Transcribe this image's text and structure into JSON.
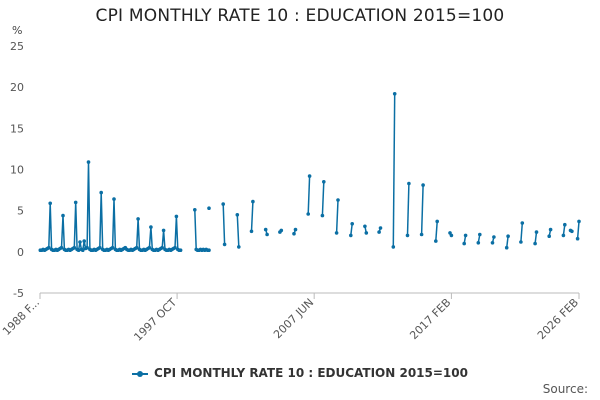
{
  "chart_data": {
    "type": "line",
    "title": "CPI MONTHLY RATE 10 : EDUCATION 2015=100",
    "ylabel": "%",
    "xlabel": "",
    "ylim": [
      -5,
      25
    ],
    "yticks": [
      -5,
      0,
      5,
      10,
      15,
      20,
      25
    ],
    "xlim": [
      1988.08,
      2026.1
    ],
    "xticks": [
      {
        "value": 1988.08,
        "label": "1988 F..."
      },
      {
        "value": 1997.75,
        "label": "1997 OCT"
      },
      {
        "value": 2007.42,
        "label": "2007 JUN"
      },
      {
        "value": 2017.1,
        "label": "2017 FEB"
      },
      {
        "value": 2026.1,
        "label": "2026 FEB"
      }
    ],
    "grid": false,
    "legend_position": "bottom",
    "series": [
      {
        "name": "CPI MONTHLY RATE 10 : EDUCATION 2015=100",
        "color": "#0b6fa4",
        "x": [
          1988.1,
          1988.2,
          1988.3,
          1988.4,
          1988.5,
          1988.6,
          1988.7,
          1988.8,
          1988.9,
          1989.0,
          1989.1,
          1989.2,
          1989.3,
          1989.4,
          1989.5,
          1989.6,
          1989.7,
          1989.8,
          1989.9,
          1990.0,
          1990.1,
          1990.2,
          1990.3,
          1990.4,
          1990.5,
          1990.6,
          1990.7,
          1990.8,
          1990.9,
          1991.0,
          1991.1,
          1991.2,
          1991.3,
          1991.4,
          1991.5,
          1991.6,
          1991.7,
          1991.8,
          1991.9,
          1992.0,
          1992.1,
          1992.2,
          1992.3,
          1992.4,
          1992.5,
          1992.6,
          1992.7,
          1992.8,
          1992.9,
          1993.0,
          1993.1,
          1993.2,
          1993.3,
          1993.4,
          1993.5,
          1993.6,
          1993.7,
          1993.8,
          1993.9,
          1994.0,
          1994.1,
          1994.2,
          1994.3,
          1994.4,
          1994.5,
          1994.6,
          1994.7,
          1994.8,
          1994.9,
          1995.0,
          1995.1,
          1995.2,
          1995.3,
          1995.4,
          1995.5,
          1995.6,
          1995.7,
          1995.8,
          1995.9,
          1996.0,
          1996.1,
          1996.2,
          1996.3,
          1996.4,
          1996.5,
          1996.6,
          1996.7,
          1996.8,
          1996.9,
          1997.0,
          1997.1,
          1997.2,
          1997.3,
          1997.4,
          1997.5,
          1997.6,
          1997.7,
          1997.8,
          1997.9,
          1998.0,
          null,
          1999.0,
          1999.1,
          1999.2,
          1999.3,
          1999.4,
          1999.5,
          1999.6,
          1999.7,
          1999.8,
          1999.9,
          2000.0,
          null,
          2000.0,
          null,
          2001.0,
          2001.1,
          null,
          2002.0,
          2002.1,
          null,
          2003.0,
          2003.1,
          null,
          2004.0,
          2004.1,
          null,
          2005.0,
          2005.1,
          null,
          2006.0,
          2006.1,
          null,
          2007.0,
          2007.1,
          null,
          2008.0,
          2008.1,
          null,
          2009.0,
          2009.1,
          null,
          2010.0,
          2010.1,
          null,
          2011.0,
          2011.1,
          null,
          2012.0,
          2012.1,
          null,
          2013.0,
          2013.1,
          null,
          2014.0,
          2014.1,
          null,
          2015.0,
          2015.1,
          null,
          2016.0,
          2016.1,
          null,
          2017.0,
          2017.1,
          null,
          2018.0,
          2018.1,
          null,
          2019.0,
          2019.1,
          null,
          2020.0,
          2020.1,
          null,
          2021.0,
          2021.1,
          null,
          2022.0,
          2022.1,
          null,
          2023.0,
          2023.1,
          null,
          2024.0,
          2024.1,
          null,
          2025.0,
          2025.1,
          null,
          2025.5,
          2025.6,
          null,
          2026.0,
          2026.1
        ],
        "values": [
          0.2,
          0.2,
          0.3,
          0.2,
          0.3,
          0.4,
          0.5,
          5.9,
          0.3,
          0.2,
          0.2,
          0.3,
          0.2,
          0.3,
          0.4,
          0.5,
          4.4,
          0.3,
          0.2,
          0.2,
          0.3,
          0.2,
          0.3,
          0.4,
          0.5,
          6.0,
          0.3,
          0.2,
          1.2,
          0.3,
          0.2,
          1.3,
          0.4,
          0.5,
          10.9,
          0.3,
          0.2,
          0.2,
          0.3,
          0.2,
          0.3,
          0.4,
          0.5,
          7.2,
          0.3,
          0.2,
          0.2,
          0.3,
          0.2,
          0.3,
          0.4,
          0.5,
          6.4,
          0.3,
          0.2,
          0.2,
          0.3,
          0.2,
          0.3,
          0.4,
          0.5,
          0.3,
          0.2,
          0.2,
          0.3,
          0.2,
          0.3,
          0.4,
          0.5,
          4.0,
          0.3,
          0.2,
          0.2,
          0.3,
          0.2,
          0.3,
          0.4,
          0.5,
          3.0,
          0.3,
          0.2,
          0.2,
          0.3,
          0.2,
          0.3,
          0.4,
          0.5,
          2.6,
          0.3,
          0.2,
          0.2,
          0.3,
          0.2,
          0.3,
          0.4,
          0.5,
          4.3,
          0.3,
          0.2,
          0.2,
          null,
          5.1,
          0.3,
          0.2,
          0.2,
          0.3,
          0.2,
          0.3,
          0.2,
          0.3,
          0.2,
          0.2,
          null,
          5.3,
          null,
          5.8,
          0.9,
          null,
          4.5,
          0.6,
          null,
          2.5,
          6.1,
          null,
          2.7,
          2.1,
          null,
          2.4,
          2.6,
          null,
          2.2,
          2.7,
          null,
          4.6,
          9.2,
          null,
          4.4,
          8.5,
          null,
          2.3,
          6.3,
          null,
          2.0,
          3.4,
          null,
          3.1,
          2.3,
          null,
          2.4,
          2.9,
          null,
          0.6,
          19.2,
          null,
          2.0,
          8.3,
          null,
          2.1,
          8.1,
          null,
          1.3,
          3.7,
          null,
          2.3,
          2.0,
          null,
          1.0,
          2.0,
          null,
          1.1,
          2.1,
          null,
          1.1,
          1.8,
          null,
          0.5,
          1.9,
          null,
          1.2,
          3.5,
          null,
          1.0,
          2.4,
          null,
          1.9,
          2.7,
          null,
          2.0,
          3.3,
          null,
          2.6,
          2.5,
          null,
          1.6,
          3.7
        ]
      }
    ]
  },
  "legend": {
    "label": "CPI MONTHLY RATE 10 : EDUCATION 2015=100"
  },
  "source": "Source:"
}
